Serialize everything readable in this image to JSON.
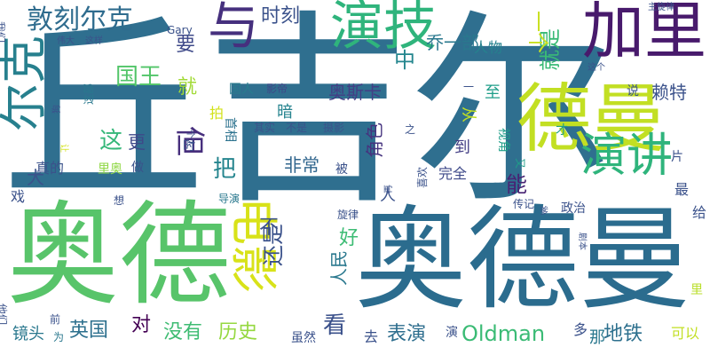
{
  "words": [
    {
      "text": "丘吉尔",
      "color": "#2f6f8f"
    },
    {
      "text": "奥德曼",
      "color": "#2b6c8e"
    },
    {
      "text": "奥德",
      "color": "#58c46a"
    },
    {
      "text": "德曼",
      "color": "#c2df23"
    },
    {
      "text": "加里",
      "color": "#481a6c"
    },
    {
      "text": "演技",
      "color": "#2fb47c"
    },
    {
      "text": "与",
      "color": "#46307e"
    },
    {
      "text": "尔克",
      "color": "#27808e"
    },
    {
      "text": "演讲",
      "color": "#2fb47c"
    },
    {
      "text": "电影",
      "color": "#d8e219"
    },
    {
      "text": "敦刻尔克",
      "color": "#2f6c8e"
    },
    {
      "text": "国王",
      "color": "#52c569"
    },
    {
      "text": "时刻",
      "color": "#3b528b"
    },
    {
      "text": "就是",
      "color": "#3aba76"
    },
    {
      "text": "一个",
      "color": "#c8e020"
    },
    {
      "text": "乔一部",
      "color": "#2a788e"
    },
    {
      "text": "角色",
      "color": "#46337f"
    },
    {
      "text": "非常",
      "color": "#31668e"
    },
    {
      "text": "这",
      "color": "#35b779"
    },
    {
      "text": "更",
      "color": "#3e4989"
    },
    {
      "text": "但",
      "color": "#472f7d"
    },
    {
      "text": "把",
      "color": "#25858e"
    },
    {
      "text": "表演",
      "color": "#2e6e8e"
    },
    {
      "text": "Oldman",
      "color": "#3bbb75"
    },
    {
      "text": "历史",
      "color": "#95d840"
    },
    {
      "text": "没有",
      "color": "#3fbc73"
    },
    {
      "text": "英国",
      "color": "#2d708e"
    },
    {
      "text": "看",
      "color": "#3b518b"
    },
    {
      "text": "好",
      "color": "#3dbc74"
    },
    {
      "text": "地铁",
      "color": "#2d708e"
    },
    {
      "text": "奥斯卡",
      "color": "#433e85"
    },
    {
      "text": "赖特",
      "color": "#3b528b"
    },
    {
      "text": "中",
      "color": "#24868e"
    },
    {
      "text": "要",
      "color": "#3e4989"
    },
    {
      "text": "就",
      "color": "#a2da37"
    },
    {
      "text": "能",
      "color": "#482374"
    },
    {
      "text": "到",
      "color": "#433e85"
    },
    {
      "text": "完全",
      "color": "#3e4989"
    },
    {
      "text": "还是",
      "color": "#3b528b"
    },
    {
      "text": "不",
      "color": "#3b528b"
    },
    {
      "text": "人民",
      "color": "#2a788e"
    },
    {
      "text": "人物",
      "color": "#26828e"
    },
    {
      "text": "国人",
      "color": "#287c8e"
    },
    {
      "text": "影帝",
      "color": "#3f4788"
    },
    {
      "text": "暗",
      "color": "#25838e"
    },
    {
      "text": "至",
      "color": "#1f9e89"
    },
    {
      "text": "从",
      "color": "#c0df25"
    },
    {
      "text": "拍",
      "color": "#d2e21b"
    },
    {
      "text": "首相",
      "color": "#2c728e"
    },
    {
      "text": "其实",
      "color": "#3b528b"
    },
    {
      "text": "不是",
      "color": "#3b528b"
    },
    {
      "text": "摄影",
      "color": "#3b528b"
    },
    {
      "text": "视角",
      "color": "#1f9e89"
    },
    {
      "text": "又",
      "color": "#1f9e89"
    },
    {
      "text": "才",
      "color": "#1f9e89"
    },
    {
      "text": "片",
      "color": "#3b528b"
    },
    {
      "text": "最",
      "color": "#3b528b"
    },
    {
      "text": "给",
      "color": "#3b528b"
    },
    {
      "text": "剧本",
      "color": "#3b528b"
    },
    {
      "text": "里",
      "color": "#b8de29"
    },
    {
      "text": "可以",
      "color": "#c2df23"
    },
    {
      "text": "那",
      "color": "#2a788e"
    },
    {
      "text": "多",
      "color": "#3b528b"
    },
    {
      "text": "演",
      "color": "#3b528b"
    },
    {
      "text": "去",
      "color": "#3b528b"
    },
    {
      "text": "虽然",
      "color": "#3b528b"
    },
    {
      "text": "镜头",
      "color": "#2a788e"
    },
    {
      "text": "为",
      "color": "#2a788e"
    },
    {
      "text": "对",
      "color": "#440154"
    },
    {
      "text": "戏",
      "color": "#3b528b"
    },
    {
      "text": "大",
      "color": "#3b528b"
    },
    {
      "text": "真的",
      "color": "#3b528b"
    },
    {
      "text": "做",
      "color": "#3b528b"
    },
    {
      "text": "里奥",
      "color": "#8fd744"
    },
    {
      "text": "想",
      "color": "#3b528b"
    },
    {
      "text": "导演",
      "color": "#2a788e"
    },
    {
      "text": "旋律",
      "color": "#3b528b"
    },
    {
      "text": "政治",
      "color": "#3b528b"
    },
    {
      "text": "喜欢",
      "color": "#3b528b"
    },
    {
      "text": "传记",
      "color": "#3b528b"
    },
    {
      "text": "爹",
      "color": "#3b528b"
    },
    {
      "text": "主旋律",
      "color": "#3b528b"
    },
    {
      "text": "这个",
      "color": "#3b528b"
    },
    {
      "text": "说",
      "color": "#3b528b"
    },
    {
      "text": "伟大",
      "color": "#3b528b"
    },
    {
      "text": "这样",
      "color": "#3b528b"
    },
    {
      "text": "Gary",
      "color": "#3b528b"
    },
    {
      "text": "我们",
      "color": "#3b528b"
    },
    {
      "text": "狗",
      "color": "#3b528b"
    },
    {
      "text": "这部",
      "color": "#2a788e"
    },
    {
      "text": "个人",
      "color": "#3b528b"
    },
    {
      "text": "让",
      "color": "#d2e21b"
    },
    {
      "text": "之",
      "color": "#3b528b"
    },
    {
      "text": "再",
      "color": "#3b528b"
    },
    {
      "text": "前",
      "color": "#3b528b"
    },
    {
      "text": "他们",
      "color": "#3b528b"
    },
    {
      "text": "人",
      "color": "#3b528b"
    },
    {
      "text": "被",
      "color": "#3b528b"
    },
    {
      "text": "一",
      "color": "#3b528b"
    },
    {
      "text": "时",
      "color": "#3b528b"
    }
  ]
}
